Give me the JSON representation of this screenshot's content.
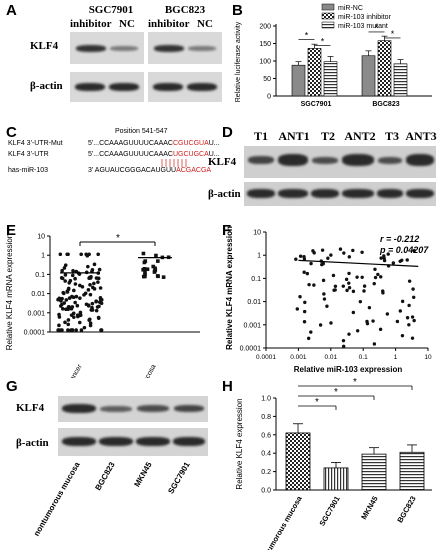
{
  "panels": {
    "A": {
      "letter": "A",
      "groups": [
        {
          "name": "SGC7901",
          "lanes": [
            "inhibitor",
            "NC"
          ]
        },
        {
          "name": "BGC823",
          "lanes": [
            "inhibitor",
            "NC"
          ]
        }
      ],
      "rows": [
        "KLF4",
        "β-actin"
      ]
    },
    "B": {
      "letter": "B",
      "legend": [
        "miR-NC",
        "miR-103 inhibitor",
        "miR-103 mutant"
      ],
      "ylabel": "Relative luciferase activity",
      "sig": "*"
    },
    "C": {
      "letter": "C",
      "position_label": "Position 541-547",
      "rows": [
        {
          "name": "KLF4 3'-UTR-Mut",
          "seq": "5'...CCAAAGUUUUCAAAC",
          "hl": "CGUCGUA",
          "tail": "U..."
        },
        {
          "name": "KLF4 3'-UTR",
          "seq": "5'...CCAAAGUUUUCAAAC",
          "hl": "UGCUGCA",
          "tail": "U..."
        },
        {
          "name": "has-miR-103",
          "seq": "3' AGUAUCGGGACAUGUU",
          "hl": "ACGACGA",
          "tail": ""
        }
      ]
    },
    "D": {
      "letter": "D",
      "lanes": [
        "T1",
        "ANT1",
        "T2",
        "ANT2",
        "T3",
        "ANT3"
      ],
      "rows": [
        "KLF4",
        "β-actin"
      ]
    },
    "E": {
      "letter": "E"
    },
    "F": {
      "letter": "F",
      "r_text": "r = -0.212",
      "p_text": "p = 0.04207"
    },
    "G": {
      "letter": "G",
      "lanes": [
        "nontumorous mucosa",
        "BGC823",
        "MKN45",
        "SGC7901"
      ],
      "rows": [
        "KLF4",
        "β-actin"
      ]
    },
    "H": {
      "letter": "H",
      "sig": "*"
    }
  },
  "colors": {
    "bar_fill": "#8a8a8a",
    "red": "#d01c1c"
  },
  "chart_data": [
    {
      "id": "B",
      "type": "bar",
      "categories": [
        "SGC7901",
        "BGC823"
      ],
      "series": [
        {
          "name": "miR-NC",
          "values": [
            88,
            115
          ],
          "errors": [
            10,
            14
          ]
        },
        {
          "name": "miR-103 inhibitor",
          "values": [
            136,
            158
          ],
          "errors": [
            12,
            13
          ]
        },
        {
          "name": "miR-103 mutant",
          "values": [
            98,
            92
          ],
          "errors": [
            15,
            12
          ]
        }
      ],
      "ylabel": "Relative luciferase activity",
      "ylim": [
        0,
        200
      ],
      "yticks": [
        "0",
        "50",
        "100",
        "150",
        "200"
      ],
      "significance": "*"
    },
    {
      "id": "E",
      "type": "scatter",
      "categories": [
        "primary gastric cancer",
        "nontumorous mucosa"
      ],
      "ylabel": "Relative KLF4 mRNA expression",
      "yscale": "log",
      "ylim": [
        0.0001,
        10
      ],
      "yticks": [
        "10",
        "1",
        "0.1",
        "0.01",
        "0.001",
        "0.0001"
      ],
      "medians": [
        0.12,
        0.75
      ],
      "significance": "*"
    },
    {
      "id": "F",
      "type": "scatter",
      "xlabel": "Relative miR-103 expression",
      "ylabel": "Relative KLF4 mRNA expression",
      "xscale": "log",
      "yscale": "log",
      "xlim": [
        0.0001,
        10
      ],
      "ylim": [
        0.0001,
        10
      ],
      "xticks": [
        "0.0001",
        "0.001",
        "0.01",
        "0.1",
        "1",
        "10"
      ],
      "yticks": [
        "10",
        "1",
        "0.1",
        "0.01",
        "0.001",
        "0.0001"
      ],
      "annotations": [
        "r = -0.212",
        "p = 0.04207"
      ],
      "trendline": [
        [
          0.001,
          0.6
        ],
        [
          5,
          0.33
        ]
      ]
    },
    {
      "id": "H",
      "type": "bar",
      "categories": [
        "nontumorous mucosa",
        "SGC7901",
        "MKN45",
        "BGC823"
      ],
      "values": [
        0.62,
        0.24,
        0.39,
        0.41
      ],
      "errors": [
        0.1,
        0.06,
        0.07,
        0.08
      ],
      "ylabel": "Relative KLF4 expression",
      "ylim": [
        0,
        1.0
      ],
      "yticks": [
        "0.0",
        "0.2",
        "0.4",
        "0.6",
        "0.8",
        "1.0"
      ],
      "significance": "*"
    }
  ]
}
